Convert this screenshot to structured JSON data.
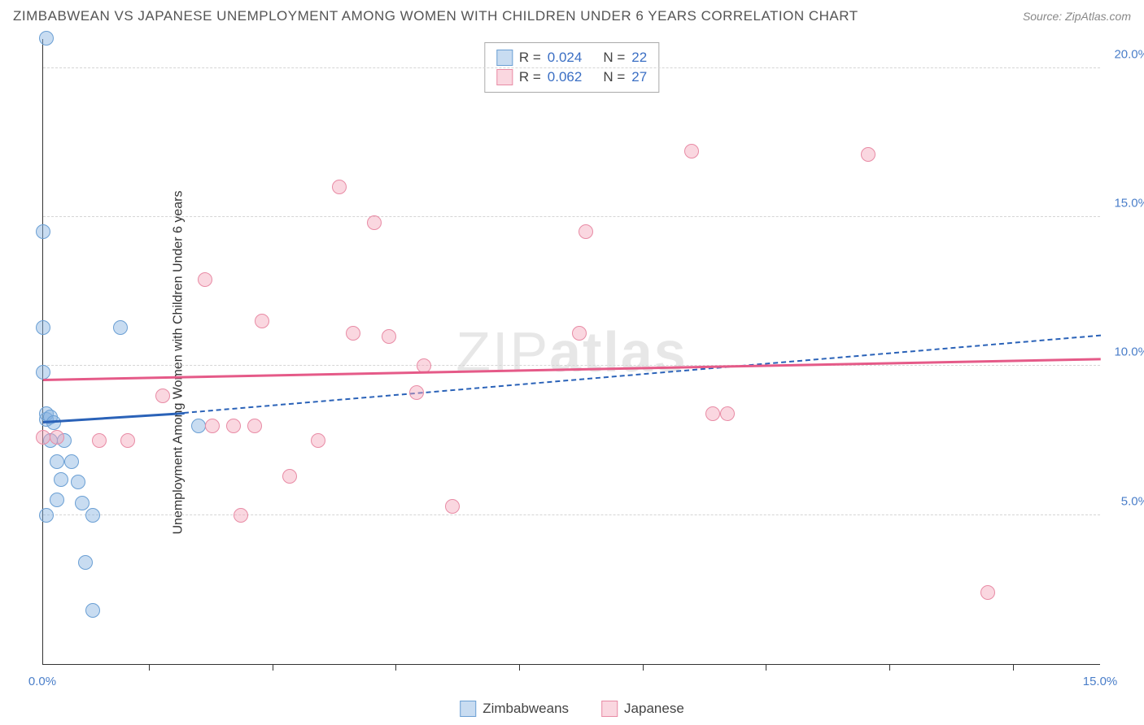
{
  "chart": {
    "title": "ZIMBABWEAN VS JAPANESE UNEMPLOYMENT AMONG WOMEN WITH CHILDREN UNDER 6 YEARS CORRELATION CHART",
    "source": "Source: ZipAtlas.com",
    "y_axis_label": "Unemployment Among Women with Children Under 6 years",
    "watermark_light": "ZIP",
    "watermark_bold": "atlas",
    "background_color": "#ffffff",
    "grid_color": "#d5d5d5",
    "axis_color": "#333333",
    "tick_font_color": "#4a7ec9",
    "xlim": [
      0,
      15
    ],
    "ylim": [
      0,
      21
    ],
    "y_ticks": [
      5,
      10,
      15,
      20
    ],
    "y_tick_labels": [
      "5.0%",
      "10.0%",
      "15.0%",
      "20.0%"
    ],
    "x_ticks": [
      0,
      5,
      10,
      15
    ],
    "x_tick_labels": [
      "0.0%",
      "",
      "",
      "15.0%"
    ],
    "x_minor_ticks": [
      1.5,
      3.25,
      5.0,
      6.75,
      8.5,
      10.25,
      12.0,
      13.75
    ],
    "series": [
      {
        "name": "Zimbabweans",
        "fill": "rgba(133, 178, 224, 0.45)",
        "stroke": "#6a9fd4",
        "r": 0.024,
        "n": 22,
        "trend": {
          "color": "#2a62b8",
          "solid_x0": 0,
          "solid_y0": 8.1,
          "solid_x1": 2.0,
          "solid_y1": 8.4,
          "dash_x1": 15,
          "dash_y1": 11.0
        },
        "points": [
          [
            0.05,
            21.0
          ],
          [
            0.0,
            14.5
          ],
          [
            0.0,
            11.3
          ],
          [
            1.1,
            11.3
          ],
          [
            0.0,
            9.8
          ],
          [
            0.05,
            8.2
          ],
          [
            0.05,
            8.4
          ],
          [
            0.1,
            8.3
          ],
          [
            0.15,
            8.1
          ],
          [
            0.1,
            7.5
          ],
          [
            0.3,
            7.5
          ],
          [
            0.2,
            6.8
          ],
          [
            0.4,
            6.8
          ],
          [
            0.25,
            6.2
          ],
          [
            0.5,
            6.1
          ],
          [
            0.2,
            5.5
          ],
          [
            0.55,
            5.4
          ],
          [
            0.05,
            5.0
          ],
          [
            0.7,
            5.0
          ],
          [
            2.2,
            8.0
          ],
          [
            0.6,
            3.4
          ],
          [
            0.7,
            1.8
          ]
        ]
      },
      {
        "name": "Japanese",
        "fill": "rgba(243, 166, 186, 0.45)",
        "stroke": "#e88ba5",
        "r": 0.062,
        "n": 27,
        "trend": {
          "color": "#e55a88",
          "solid_x0": 0,
          "solid_y0": 9.5,
          "solid_x1": 15,
          "solid_y1": 10.2
        },
        "points": [
          [
            9.2,
            17.2
          ],
          [
            11.7,
            17.1
          ],
          [
            4.2,
            16.0
          ],
          [
            4.7,
            14.8
          ],
          [
            7.7,
            14.5
          ],
          [
            2.3,
            12.9
          ],
          [
            3.1,
            11.5
          ],
          [
            4.4,
            11.1
          ],
          [
            4.9,
            11.0
          ],
          [
            7.6,
            11.1
          ],
          [
            5.4,
            10.0
          ],
          [
            5.3,
            9.1
          ],
          [
            0.0,
            7.6
          ],
          [
            0.2,
            7.6
          ],
          [
            0.8,
            7.5
          ],
          [
            1.2,
            7.5
          ],
          [
            1.7,
            9.0
          ],
          [
            2.4,
            8.0
          ],
          [
            2.7,
            8.0
          ],
          [
            3.0,
            8.0
          ],
          [
            9.5,
            8.4
          ],
          [
            9.7,
            8.4
          ],
          [
            3.9,
            7.5
          ],
          [
            3.5,
            6.3
          ],
          [
            2.8,
            5.0
          ],
          [
            5.8,
            5.3
          ],
          [
            13.4,
            2.4
          ]
        ]
      }
    ],
    "bottom_legend": [
      "Zimbabweans",
      "Japanese"
    ],
    "top_legend_labels": {
      "r": "R =",
      "n": "N ="
    }
  }
}
